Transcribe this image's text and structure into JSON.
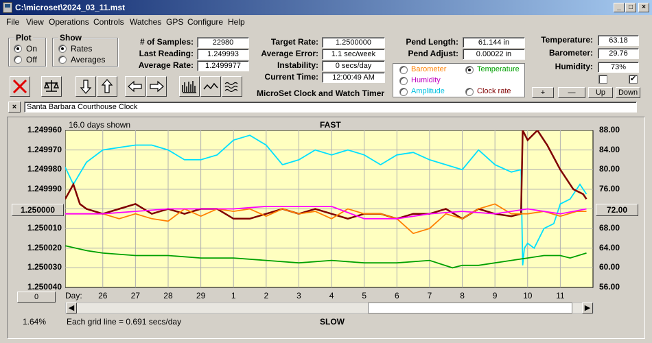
{
  "window": {
    "title": "C:\\microset\\2024_03_11.mst"
  },
  "menu": [
    "File",
    "View",
    "Operations",
    "Controls",
    "Watches",
    "GPS",
    "Configure",
    "Help"
  ],
  "plot_group": {
    "title": "Plot",
    "options": [
      "On",
      "Off"
    ],
    "selected": "On"
  },
  "show_group": {
    "title": "Show",
    "options": [
      "Rates",
      "Averages"
    ],
    "selected": "Rates"
  },
  "stats": {
    "samples_label": "# of Samples:",
    "samples": "22980",
    "last_label": "Last Reading:",
    "last": "1.249993",
    "avg_rate_label": "Average Rate:",
    "avg_rate": "1.2499977",
    "target_label": "Target Rate:",
    "target": "1.2500000",
    "avg_err_label": "Average Error:",
    "avg_err": "1.1 sec/week",
    "instab_label": "Instability:",
    "instab": "0 secs/day",
    "time_label": "Current Time:",
    "time": "12:00:49 AM",
    "pend_len_label": "Pend Length:",
    "pend_len": "61.144 in",
    "pend_adj_label": "Pend Adjust:",
    "pend_adj": "0.00022 in",
    "temp_label": "Temperature:",
    "temp": "63.18",
    "baro_label": "Barometer:",
    "baro": "29.76",
    "hum_label": "Humidity:",
    "hum": "73%"
  },
  "app_title": "MicroSet Clock and Watch Timer",
  "sensor_group": {
    "barometer": "Barometer",
    "temperature": "Temperature",
    "humidity": "Humidity",
    "amplitude": "Amplitude",
    "clock_rate": "Clock rate",
    "selected": "Temperature"
  },
  "small_buttons": {
    "plus": "+",
    "minus": "—",
    "up": "Up",
    "down": "Down"
  },
  "checkboxes": [
    false,
    true
  ],
  "clock_name": "Santa Barbara Courthouse Clock",
  "chart_header": {
    "days_shown": "16.0 days shown",
    "fast": "FAST",
    "slow": "SLOW",
    "grid_note": "Each grid line = 0.691 secs/day",
    "percent": "1.64%",
    "left_btn": "1.250000",
    "right_btn": "72.00",
    "zero_btn": "0",
    "day_label": "Day:"
  },
  "colors": {
    "temperature": "#800000",
    "barometer": "#ff8000",
    "humidity": "#ff00ff",
    "amplitude": "#00e0ff",
    "rate": "#00a000",
    "plot_bg": "#ffffc0"
  },
  "chart_data": {
    "type": "line",
    "left_axis_ticks": [
      "1.249960",
      "1.249970",
      "1.249980",
      "1.249990",
      "1.250000",
      "1.250010",
      "1.250020",
      "1.250030",
      "1.250040"
    ],
    "right_axis_ticks": [
      "88.00",
      "84.00",
      "80.00",
      "76.00",
      "72.00",
      "68.00",
      "64.00",
      "60.00",
      "56.00"
    ],
    "right_ylim": [
      56,
      88
    ],
    "x_ticks": [
      "26",
      "27",
      "28",
      "29",
      "1",
      "2",
      "3",
      "4",
      "5",
      "6",
      "7",
      "8",
      "9",
      "10",
      "11"
    ],
    "x_tick_days": [
      0,
      1,
      2,
      3,
      4,
      5,
      6,
      7,
      8,
      9,
      10,
      11,
      12,
      13,
      14
    ],
    "x_range_days": [
      -1.15,
      15.0
    ],
    "grid": true,
    "series": [
      {
        "key": "amplitude",
        "x": [
          -1.15,
          -0.9,
          -0.5,
          0,
          0.5,
          1,
          1.5,
          2,
          2.5,
          3,
          3.5,
          4,
          4.5,
          5,
          5.5,
          6,
          6.5,
          7,
          7.5,
          8,
          8.5,
          9,
          9.5,
          10,
          10.5,
          11,
          11.5,
          12,
          12.5,
          12.8,
          12.85,
          12.9,
          13,
          13.2,
          13.5,
          13.8,
          14,
          14.3,
          14.6,
          14.8
        ],
        "y": [
          80.5,
          77,
          81.5,
          84,
          84.5,
          85,
          85,
          84,
          82,
          82,
          83,
          86,
          87,
          85,
          81,
          82,
          84,
          83,
          84,
          83,
          81,
          83,
          83.5,
          82,
          81,
          80,
          84,
          81,
          79.5,
          80,
          60.5,
          64,
          65,
          64,
          68,
          69,
          73,
          74,
          77,
          75
        ]
      },
      {
        "key": "temperature",
        "x": [
          -1.15,
          -0.9,
          -0.7,
          -0.5,
          0,
          0.5,
          1,
          1.5,
          2,
          2.5,
          3,
          3.5,
          4,
          4.5,
          5,
          5.5,
          6,
          6.5,
          7,
          7.5,
          8,
          8.5,
          9,
          9.5,
          10,
          10.5,
          11,
          11.5,
          12,
          12.5,
          12.8,
          12.85,
          13,
          13.3,
          13.6,
          14,
          14.4,
          14.7,
          14.8
        ],
        "y": [
          74,
          77,
          73,
          72,
          71,
          72,
          73,
          71,
          72,
          71,
          72,
          72,
          70,
          70,
          71,
          72,
          71,
          72,
          71,
          70,
          71,
          71,
          70,
          71,
          71,
          72,
          70,
          72,
          71,
          70.5,
          71,
          88,
          86,
          88,
          85,
          80,
          76,
          75,
          74
        ]
      },
      {
        "key": "barometer",
        "x": [
          -1.15,
          0,
          0.5,
          1,
          1.5,
          2,
          2.5,
          3,
          3.5,
          4,
          4.5,
          5,
          5.5,
          6,
          6.5,
          7,
          7.5,
          8,
          8.5,
          9,
          9.5,
          10,
          10.5,
          11,
          11.5,
          12,
          12.5,
          13,
          13.5,
          14,
          14.5,
          14.8
        ],
        "y": [
          71,
          71,
          70,
          71,
          70,
          69.5,
          72,
          70.5,
          72,
          71.5,
          72,
          70.5,
          72,
          71,
          71.5,
          70,
          72,
          71,
          71,
          70,
          67,
          68,
          71,
          70,
          72,
          73,
          71,
          71,
          71.5,
          70.5,
          71.5,
          71.5
        ]
      },
      {
        "key": "humidity",
        "x": [
          -1.15,
          0,
          1,
          2,
          3,
          4,
          5,
          6,
          7,
          8,
          9,
          10,
          11,
          12,
          13,
          14,
          14.8
        ],
        "y": [
          71,
          71,
          71.5,
          72,
          72,
          72,
          72.5,
          72.5,
          72.5,
          70,
          70,
          71,
          71.5,
          71,
          72,
          71,
          72
        ]
      },
      {
        "key": "rate",
        "x": [
          -1.15,
          -0.5,
          0,
          1,
          2,
          3,
          4,
          5,
          6,
          7,
          8,
          9,
          10,
          10.7,
          11,
          11.5,
          12,
          12.5,
          13,
          13.5,
          14,
          14.3,
          14.8
        ],
        "y": [
          64.5,
          63.5,
          63,
          62.5,
          62.5,
          62,
          62,
          61.5,
          61,
          61.5,
          61,
          61,
          61.5,
          60,
          60.5,
          60.5,
          61,
          61.5,
          62,
          62.5,
          62.5,
          62,
          63
        ]
      }
    ]
  }
}
